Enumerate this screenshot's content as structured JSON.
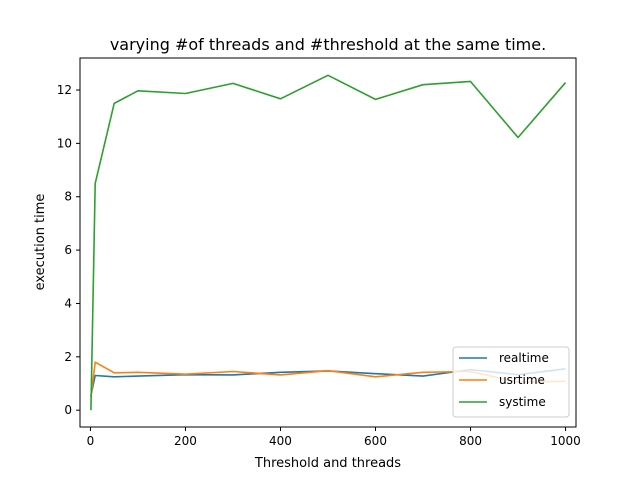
{
  "chart_data": {
    "type": "line",
    "title": "varying #of threads and #threshold at the same time.",
    "xlabel": "Threshold and threads",
    "ylabel": "execution time",
    "xlim": [
      -22,
      1022
    ],
    "ylim": [
      -0.63,
      13.2
    ],
    "xticks": [
      0,
      200,
      400,
      600,
      800,
      1000
    ],
    "yticks": [
      0,
      2,
      4,
      6,
      8,
      10,
      12
    ],
    "grid": false,
    "legend_position": "lower right",
    "x": [
      1,
      10,
      50,
      100,
      200,
      300,
      400,
      500,
      600,
      700,
      800,
      900,
      1000
    ],
    "series": [
      {
        "name": "realtime",
        "color": "#1f77b4",
        "values": [
          0.55,
          1.3,
          1.25,
          1.28,
          1.33,
          1.32,
          1.42,
          1.47,
          1.37,
          1.28,
          1.52,
          1.33,
          1.55
        ]
      },
      {
        "name": "usrtime",
        "color": "#ff7f0e",
        "values": [
          0.5,
          1.8,
          1.4,
          1.42,
          1.35,
          1.45,
          1.32,
          1.48,
          1.25,
          1.42,
          1.45,
          1.05,
          1.08
        ]
      },
      {
        "name": "systime",
        "color": "#2ca02c",
        "values": [
          0.0,
          8.5,
          11.5,
          11.97,
          11.87,
          12.25,
          11.67,
          12.55,
          11.65,
          12.2,
          12.32,
          10.22,
          12.28
        ]
      }
    ]
  }
}
